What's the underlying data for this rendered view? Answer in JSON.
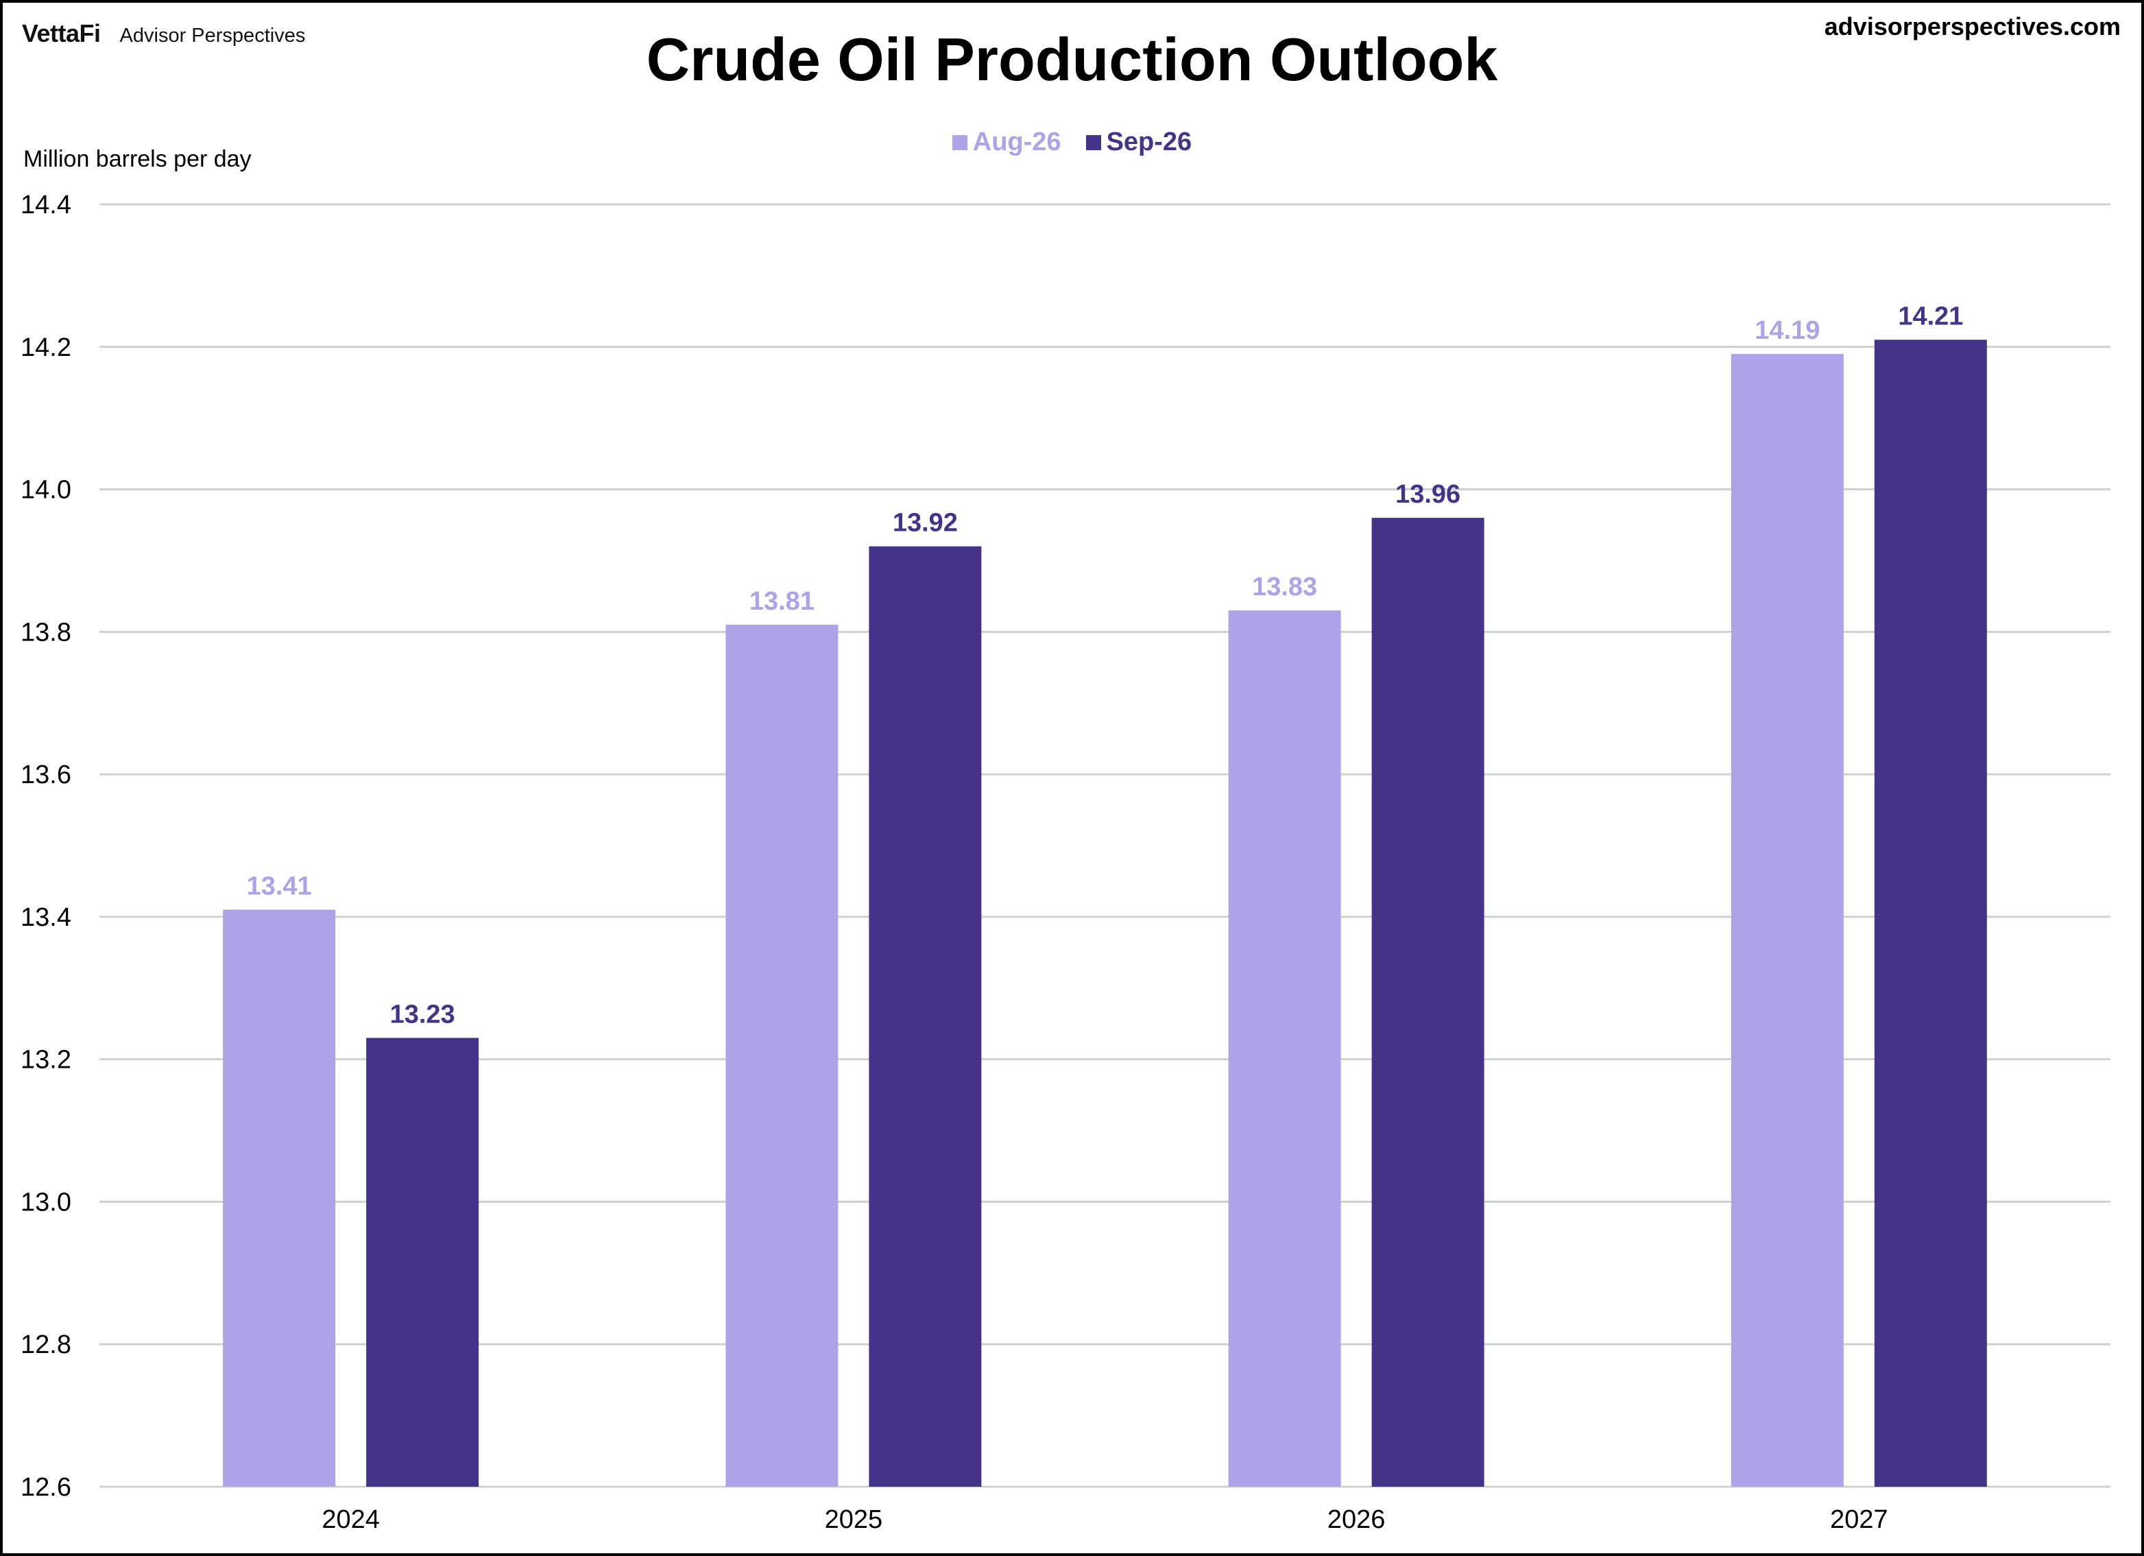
{
  "header": {
    "brand_logo": "VettaFi",
    "brand_sub": "Advisor Perspectives",
    "site_url": "advisorperspectives.com"
  },
  "colors": {
    "aug": "#ada3e8",
    "sep": "#45338a",
    "grid": "#d0d0d0",
    "axis_text": "#000000"
  },
  "chart_data": {
    "type": "bar",
    "title": "Crude Oil Production Outlook",
    "ylabel": "Million barrels per day",
    "xlabel": "",
    "categories": [
      "2024",
      "2025",
      "2026",
      "2027"
    ],
    "series": [
      {
        "name": "Aug-26",
        "values": [
          13.41,
          13.81,
          13.83,
          14.19
        ]
      },
      {
        "name": "Sep-26",
        "values": [
          13.23,
          13.92,
          13.96,
          14.21
        ]
      }
    ],
    "ylim": [
      12.6,
      14.4
    ],
    "yticks": [
      "12.6",
      "12.8",
      "13.0",
      "13.2",
      "13.4",
      "13.6",
      "13.8",
      "14.0",
      "14.2",
      "14.4"
    ],
    "grid": true,
    "legend_position": "top-center",
    "data_labels": true
  }
}
